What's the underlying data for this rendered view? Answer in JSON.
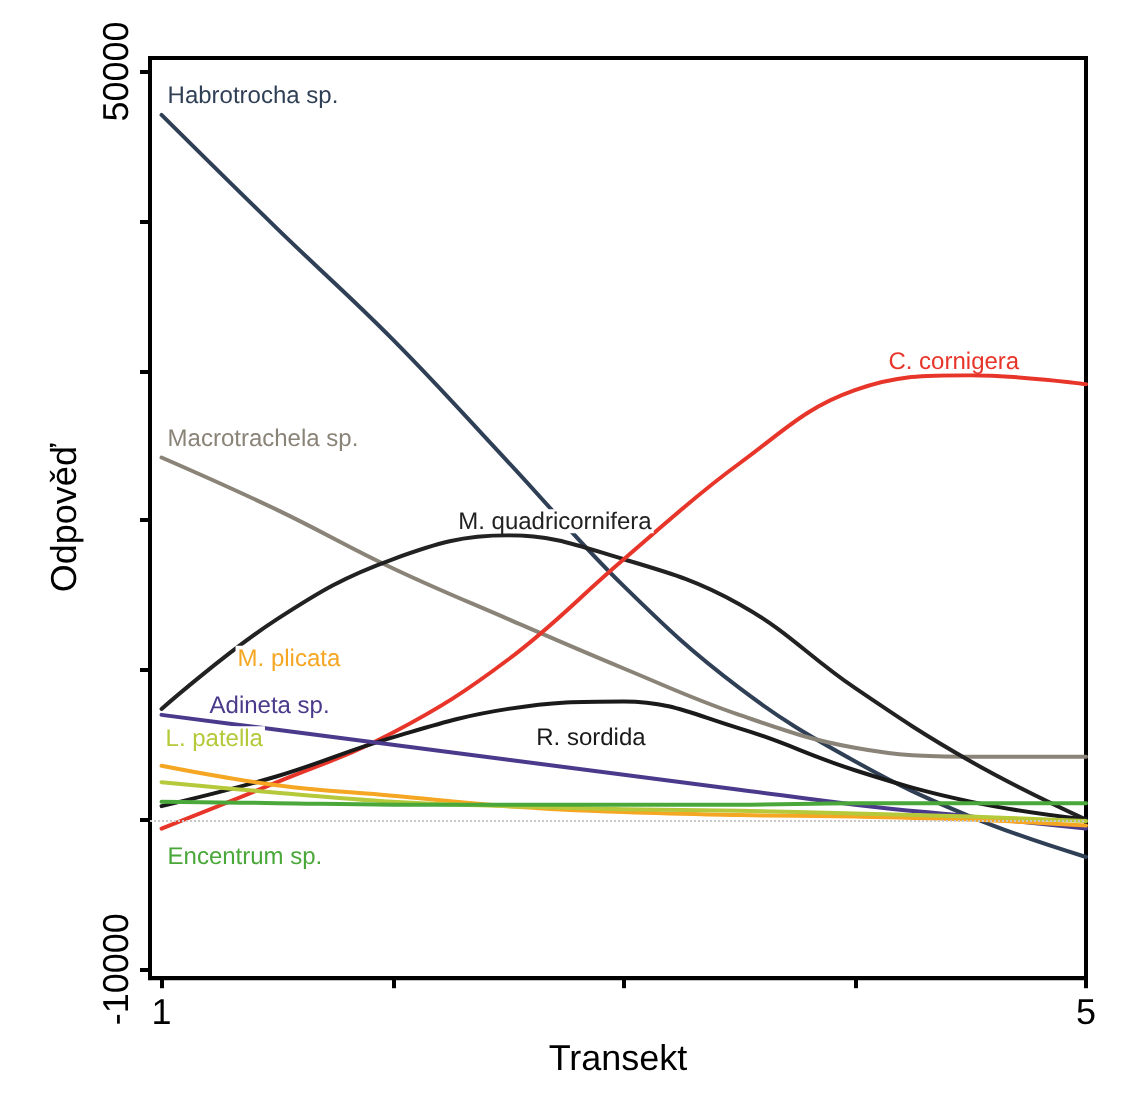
{
  "chart_data": {
    "type": "line",
    "xlabel": "Transekt",
    "ylabel": "Odpověď",
    "x": [
      1,
      1.5,
      2,
      2.5,
      3,
      3.5,
      4,
      4.5,
      5
    ],
    "xlim": [
      0.95,
      5
    ],
    "ylim": [
      -10600,
      50900
    ],
    "xticks": [
      1,
      {
        "value": 2,
        "label": null
      },
      {
        "value": 3,
        "label": null
      },
      {
        "value": 4,
        "label": null
      },
      5
    ],
    "yticks": [
      -10000,
      {
        "value": 0,
        "label": null
      },
      {
        "value": 10000,
        "label": null
      },
      {
        "value": 20000,
        "label": null
      },
      {
        "value": 30000,
        "label": null
      },
      {
        "value": 40000,
        "label": null
      },
      50000
    ],
    "grid": false,
    "legend": false,
    "marker": "none",
    "line_style": "solid",
    "ref_lines": [
      {
        "axis": "y",
        "value": 0,
        "label": null,
        "color": "#c8c8c8",
        "line_style": "dotted"
      }
    ],
    "series": [
      {
        "name": "Habrotrocha sp.",
        "color": "#2f3f55",
        "values": [
          47100,
          39500,
          32100,
          23900,
          15600,
          8800,
          3900,
          200,
          -2500
        ]
      },
      {
        "name": "Macrotrachela sp.",
        "color": "#8a8378",
        "values": [
          24200,
          20700,
          16800,
          13400,
          10100,
          7000,
          4800,
          4200,
          4200
        ]
      },
      {
        "name": "M. quadricornifera",
        "color": "#222222",
        "values": [
          7400,
          13400,
          17400,
          19000,
          17400,
          14400,
          8800,
          3900,
          0
        ]
      },
      {
        "name": "C. cornigera",
        "color": "#e8352a",
        "values": [
          -600,
          2500,
          5800,
          10700,
          17400,
          23800,
          28700,
          29700,
          29100
        ]
      },
      {
        "name": "R. sordida",
        "color": "#1a1a1a",
        "values": [
          900,
          2900,
          5500,
          7400,
          7900,
          6100,
          3300,
          1200,
          0
        ]
      },
      {
        "name": "Adineta sp.",
        "color": "#4b3a8c",
        "values": [
          7000,
          6000,
          5000,
          4000,
          3000,
          2000,
          1000,
          200,
          -600
        ]
      },
      {
        "name": "M. plicata",
        "color": "#f5a623",
        "values": [
          3600,
          2300,
          1600,
          900,
          500,
          300,
          200,
          0,
          -400
        ]
      },
      {
        "name": "L. patella",
        "color": "#b5c93a",
        "values": [
          2500,
          1800,
          1200,
          900,
          700,
          600,
          400,
          200,
          -100
        ]
      },
      {
        "name": "Encentrum sp.",
        "color": "#4aa83a",
        "values": [
          1200,
          1100,
          1000,
          1000,
          1000,
          1000,
          1100,
          1100,
          1100
        ]
      }
    ]
  }
}
